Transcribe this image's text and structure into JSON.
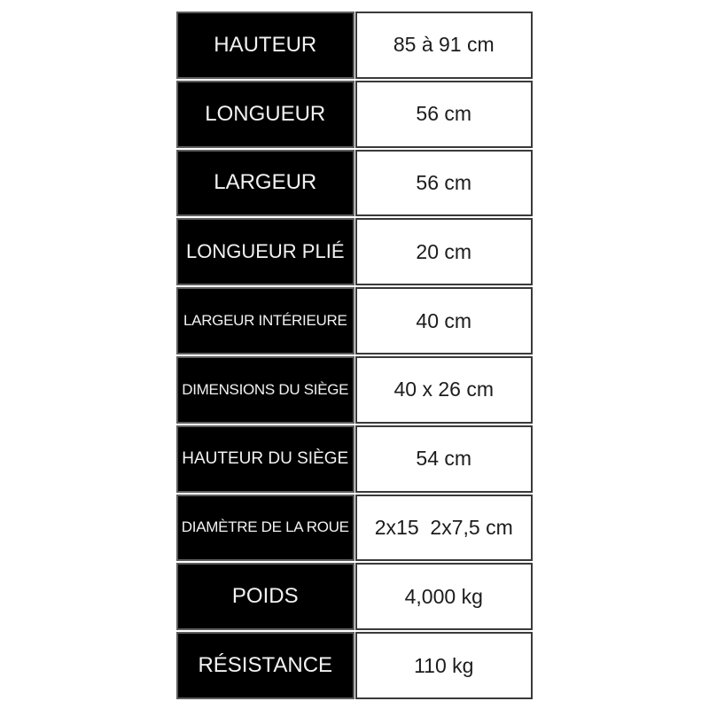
{
  "table": {
    "title": "specifications-table",
    "colors": {
      "label_background": "#000000",
      "label_text": "#f2f2f2",
      "value_background": "#ffffff",
      "value_text": "#1c1c1c",
      "border": "#4a4a4a"
    },
    "rows": [
      {
        "label": "HAUTEUR",
        "value": "85 à 91 cm"
      },
      {
        "label": "LONGUEUR",
        "value": "56 cm"
      },
      {
        "label": "LARGEUR",
        "value": "56 cm"
      },
      {
        "label": "LONGUEUR PLIÉ",
        "value": "20 cm"
      },
      {
        "label": "LARGEUR INTÉRIEURE",
        "value": "40 cm"
      },
      {
        "label": "DIMENSIONS DU SIÈGE",
        "value": "40 x 26 cm"
      },
      {
        "label": "HAUTEUR DU SIÈGE",
        "value": "54 cm"
      },
      {
        "label": "DIAMÈTRE DE LA ROUE",
        "value": "2x15  2x7,5 cm"
      },
      {
        "label": "POIDS",
        "value": "4,000 kg"
      },
      {
        "label": "RÉSISTANCE",
        "value": "110 kg"
      }
    ]
  }
}
